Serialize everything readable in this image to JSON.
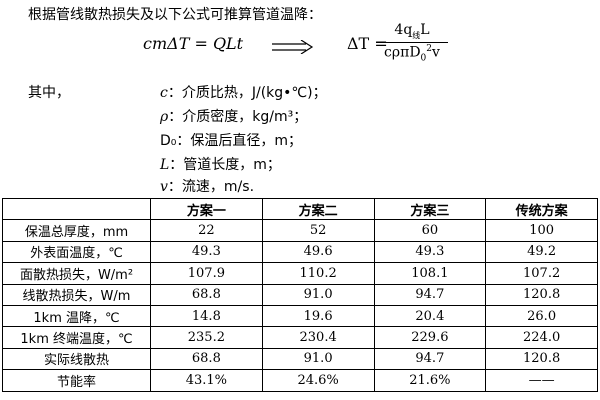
{
  "intro": "根据管线散热损失及以下公式可推算管道温降：",
  "equation_left": "cmΔT = QLt",
  "equation_right": {
    "lhs": "ΔT =",
    "numerator": "4q",
    "numerator_sub": "线",
    "numerator_tail": "L",
    "denominator": "cρπD",
    "denominator_sub": "0",
    "denominator_sup": "2",
    "denominator_tail": "v"
  },
  "where_label": "其中，",
  "definitions": [
    {
      "symbol": "c",
      "text": "：介质比热，J/(kg•℃)；"
    },
    {
      "symbol": "ρ",
      "text": "：介质密度，kg/m³；"
    },
    {
      "symbol": "D₀",
      "text": "：保温后直径，m；"
    },
    {
      "symbol": "L",
      "text": "：管道长度，m；"
    },
    {
      "symbol": "v",
      "text": "：流速，m/s."
    }
  ],
  "table": {
    "headers": [
      "",
      "方案一",
      "方案二",
      "方案三",
      "传统方案"
    ],
    "rows": [
      [
        "保温总厚度，mm",
        "22",
        "52",
        "60",
        "100"
      ],
      [
        "外表面温度，℃",
        "49.3",
        "49.6",
        "49.3",
        "49.2"
      ],
      [
        "面散热损失，W/m²",
        "107.9",
        "110.2",
        "108.1",
        "107.2"
      ],
      [
        "线散热损失，W/m",
        "68.8",
        "91.0",
        "94.7",
        "120.8"
      ],
      [
        "1km 温降，℃",
        "14.8",
        "19.6",
        "20.4",
        "26.0"
      ],
      [
        "1km 终端温度，℃",
        "235.2",
        "230.4",
        "229.6",
        "224.0"
      ],
      [
        "实际线散热",
        "68.8",
        "91.0",
        "94.7",
        "120.8"
      ],
      [
        "节能率",
        "43.1%",
        "24.6%",
        "21.6%",
        "——"
      ]
    ]
  }
}
